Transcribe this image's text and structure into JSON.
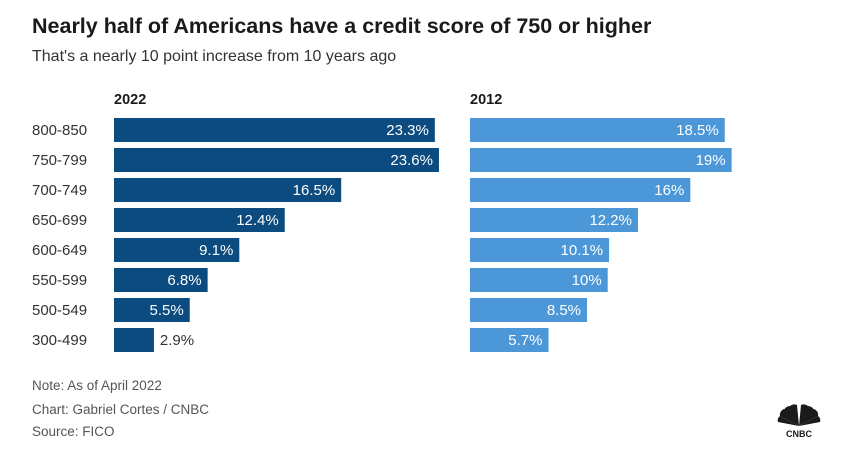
{
  "title": "Nearly half of Americans have a credit score of 750 or higher",
  "subtitle": "That's a nearly 10 point increase from 10 years ago",
  "chart_data": [
    {
      "type": "bar",
      "orientation": "horizontal",
      "title": "2022",
      "categories": [
        "800-850",
        "750-799",
        "700-749",
        "650-699",
        "600-649",
        "550-599",
        "500-549",
        "300-499"
      ],
      "values": [
        23.3,
        23.6,
        16.5,
        12.4,
        9.1,
        6.8,
        5.5,
        2.9
      ],
      "labels": [
        "23.3%",
        "23.6%",
        "16.5%",
        "12.4%",
        "9.1%",
        "6.8%",
        "5.5%",
        "2.9%"
      ],
      "color": "#0b4b80",
      "unit": "%",
      "grid": false
    },
    {
      "type": "bar",
      "orientation": "horizontal",
      "title": "2012",
      "categories": [
        "800-850",
        "750-799",
        "700-749",
        "650-699",
        "600-649",
        "550-599",
        "500-549",
        "300-499"
      ],
      "values": [
        18.5,
        19,
        16,
        12.2,
        10.1,
        10,
        8.5,
        5.7
      ],
      "labels": [
        "18.5%",
        "19%",
        "16%",
        "12.2%",
        "10.1%",
        "10%",
        "8.5%",
        "5.7%"
      ],
      "color": "#4b97d8",
      "unit": "%",
      "grid": false
    }
  ],
  "footer": {
    "note": "Note: As of April 2022",
    "credit": "Chart: Gabriel Cortes / CNBC",
    "source": "Source: FICO"
  },
  "logo": {
    "text": "CNBC",
    "icon": "cnbc-peacock-icon"
  }
}
